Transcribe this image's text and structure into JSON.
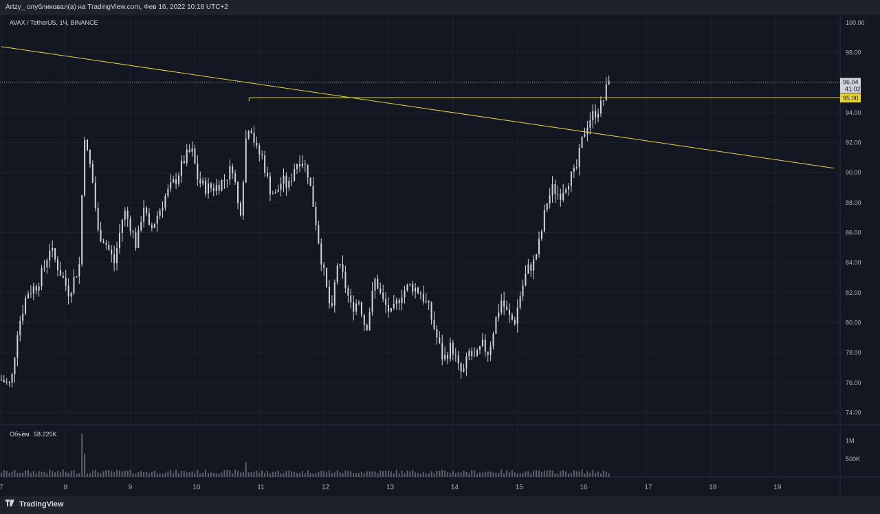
{
  "header": {
    "publisher_line": "Artzy_ опубликовал(а) на TradingView.com, Фев 16, 2022 10:18 UTC+2"
  },
  "chart_data": {
    "type": "candlestick",
    "symbol_legend": "AVAX / TetherUS, 1Ч, BINANCE",
    "price_axis": {
      "ylim": [
        73.2,
        100.5
      ],
      "ticks": [
        "74.00",
        "76.00",
        "78.00",
        "80.00",
        "82.00",
        "84.00",
        "86.00",
        "88.00",
        "90.00",
        "92.00",
        "94.00",
        "96.00",
        "98.00",
        "100.00"
      ]
    },
    "time_axis": {
      "ticks": [
        {
          "label": "7",
          "day": 7
        },
        {
          "label": "8",
          "day": 8
        },
        {
          "label": "9",
          "day": 9
        },
        {
          "label": "10",
          "day": 10
        },
        {
          "label": "11",
          "day": 11
        },
        {
          "label": "12",
          "day": 12
        },
        {
          "label": "13",
          "day": 13
        },
        {
          "label": "14",
          "day": 14
        },
        {
          "label": "15",
          "day": 15
        },
        {
          "label": "16",
          "day": 16
        },
        {
          "label": "17",
          "day": 17
        },
        {
          "label": "18",
          "day": 18
        },
        {
          "label": "19",
          "day": 19
        }
      ]
    },
    "price_path": [
      [
        7.0,
        76.2
      ],
      [
        7.15,
        75.8
      ],
      [
        7.25,
        79.5
      ],
      [
        7.4,
        82.0
      ],
      [
        7.55,
        82.5
      ],
      [
        7.65,
        83.5
      ],
      [
        7.75,
        85.0
      ],
      [
        7.9,
        83.5
      ],
      [
        8.05,
        82.0
      ],
      [
        8.15,
        83.2
      ],
      [
        8.22,
        84.0
      ],
      [
        8.28,
        93.0
      ],
      [
        8.32,
        91.5
      ],
      [
        8.4,
        90.0
      ],
      [
        8.5,
        86.0
      ],
      [
        8.6,
        85.5
      ],
      [
        8.75,
        84.0
      ],
      [
        8.9,
        87.5
      ],
      [
        9.0,
        86.5
      ],
      [
        9.1,
        85.0
      ],
      [
        9.2,
        88.0
      ],
      [
        9.3,
        86.0
      ],
      [
        9.4,
        87.0
      ],
      [
        9.55,
        88.5
      ],
      [
        9.7,
        89.5
      ],
      [
        9.85,
        91.0
      ],
      [
        9.95,
        91.5
      ],
      [
        10.05,
        89.5
      ],
      [
        10.15,
        89.0
      ],
      [
        10.3,
        89.0
      ],
      [
        10.45,
        89.5
      ],
      [
        10.6,
        90.5
      ],
      [
        10.65,
        88.0
      ],
      [
        10.72,
        87.5
      ],
      [
        10.78,
        92.0
      ],
      [
        10.85,
        93.5
      ],
      [
        10.95,
        91.5
      ],
      [
        11.05,
        91.0
      ],
      [
        11.15,
        89.0
      ],
      [
        11.25,
        88.5
      ],
      [
        11.35,
        89.5
      ],
      [
        11.45,
        89.0
      ],
      [
        11.55,
        90.5
      ],
      [
        11.65,
        91.0
      ],
      [
        11.75,
        90.0
      ],
      [
        11.85,
        87.5
      ],
      [
        11.95,
        84.5
      ],
      [
        12.05,
        82.0
      ],
      [
        12.12,
        80.5
      ],
      [
        12.2,
        84.0
      ],
      [
        12.3,
        83.0
      ],
      [
        12.42,
        81.0
      ],
      [
        12.55,
        81.5
      ],
      [
        12.65,
        79.5
      ],
      [
        12.8,
        83.0
      ],
      [
        12.9,
        81.5
      ],
      [
        13.05,
        80.5
      ],
      [
        13.2,
        82.0
      ],
      [
        13.35,
        82.5
      ],
      [
        13.5,
        82.0
      ],
      [
        13.62,
        81.0
      ],
      [
        13.75,
        79.0
      ],
      [
        13.85,
        77.5
      ],
      [
        13.98,
        78.5
      ],
      [
        14.08,
        77.0
      ],
      [
        14.15,
        76.5
      ],
      [
        14.25,
        78.0
      ],
      [
        14.35,
        77.5
      ],
      [
        14.45,
        78.5
      ],
      [
        14.55,
        78.0
      ],
      [
        14.65,
        80.0
      ],
      [
        14.75,
        81.5
      ],
      [
        14.85,
        80.5
      ],
      [
        14.95,
        80.0
      ],
      [
        15.05,
        82.0
      ],
      [
        15.15,
        83.5
      ],
      [
        15.25,
        84.0
      ],
      [
        15.35,
        85.5
      ],
      [
        15.45,
        88.0
      ],
      [
        15.55,
        89.0
      ],
      [
        15.65,
        88.5
      ],
      [
        15.78,
        89.5
      ],
      [
        15.9,
        90.0
      ],
      [
        16.02,
        92.5
      ],
      [
        16.1,
        93.5
      ],
      [
        16.2,
        94.0
      ],
      [
        16.3,
        94.5
      ],
      [
        16.36,
        95.2
      ],
      [
        16.42,
        96.5
      ]
    ],
    "current_price": {
      "value": 96.04,
      "label": "96.04",
      "countdown": "41:02"
    },
    "horizontal_level": {
      "value": 95.0,
      "label": "95.00",
      "from_day": 10.84,
      "color": "#e8d43a"
    },
    "trendline": {
      "from": [
        7.0,
        98.4
      ],
      "to": [
        19.9,
        90.3
      ],
      "color": "#e8d43a"
    },
    "volume_pane": {
      "legend_label": "Объём",
      "legend_value": "58.225K",
      "ticks": [
        {
          "label": "500K",
          "value": 500000
        },
        {
          "label": "1M",
          "value": 1000000
        }
      ],
      "max": 1300000,
      "spikes": [
        [
          8.25,
          1200000
        ],
        [
          8.3,
          650000
        ],
        [
          10.8,
          420000
        ],
        [
          16.0,
          200000
        ]
      ]
    },
    "colors": {
      "background": "#131722",
      "grid": "#1e222d",
      "candle": "#d1d4dc",
      "volume": "#5d606b",
      "level_badge": "#e8d43a"
    }
  },
  "footer": {
    "brand": "TradingView"
  }
}
